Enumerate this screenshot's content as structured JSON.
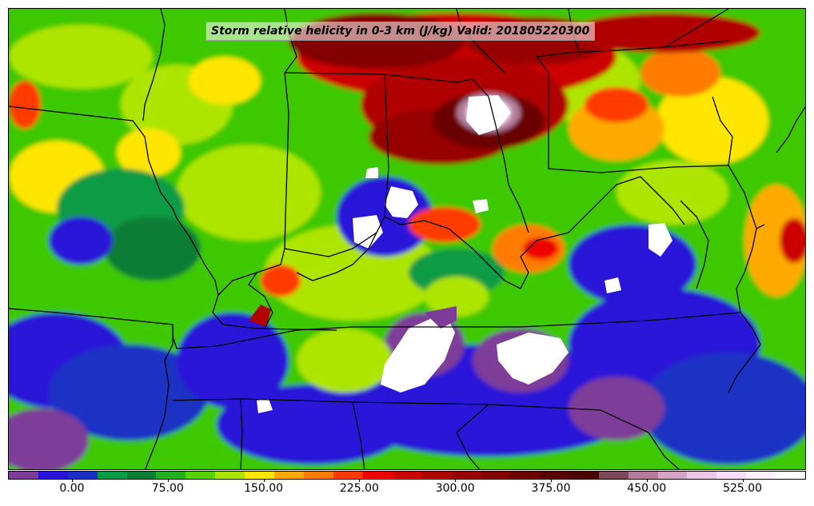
{
  "map": {
    "title": "Storm relative helicity in 0-3 km (J/kg) Valid: 201805220300",
    "basemap": "srh-contour-fill",
    "boundary_color": "#000000"
  },
  "colorbar": {
    "colors": [
      "#7d3c98",
      "#2a13d8",
      "#1a30c4",
      "#089b45",
      "#0a7d36",
      "#22b020",
      "#5bd000",
      "#aee500",
      "#ffe600",
      "#ffaa00",
      "#ff7b00",
      "#ff3a00",
      "#ee0000",
      "#cc0000",
      "#b00000",
      "#980000",
      "#820000",
      "#6a0000",
      "#580000",
      "#4a0000",
      "#7a4a5a",
      "#b47e9a",
      "#d4a4c4",
      "#ecc4e4",
      "#f8def4",
      "#fff0fc",
      "#ffffff"
    ],
    "tick_labels": [
      "0.00",
      "75.00",
      "150.00",
      "225.00",
      "300.00",
      "375.00",
      "450.00",
      "525.00"
    ]
  }
}
